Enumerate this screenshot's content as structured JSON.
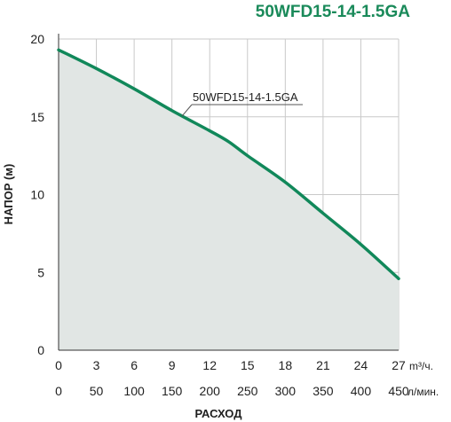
{
  "chart_data": {
    "type": "area",
    "title": "50WFD15-14-1.5GA",
    "ylabel": "НАПОР (м)",
    "xlabel": "РАСХОД",
    "x_unit_top": "m³/ч.",
    "x_unit_bottom": "л/мин.",
    "xlim": [
      0,
      27
    ],
    "ylim": [
      0,
      20
    ],
    "x_ticks": [
      0,
      3,
      6,
      9,
      12,
      15,
      18,
      21,
      24,
      27
    ],
    "x_ticks_lpm": [
      0,
      50,
      100,
      150,
      200,
      250,
      300,
      350,
      400,
      450
    ],
    "y_ticks": [
      0,
      5,
      10,
      15,
      20
    ],
    "grid": true,
    "series": [
      {
        "name": "50WFD15-14-1.5GA",
        "x": [
          0,
          3,
          6,
          9,
          12,
          13.5,
          15,
          18,
          21,
          24,
          27
        ],
        "y": [
          19.3,
          18.1,
          16.8,
          15.4,
          14.1,
          13.4,
          12.5,
          10.8,
          8.8,
          6.8,
          4.6
        ]
      }
    ],
    "colors": {
      "line": "#11885a",
      "fill": "#e1e6e4",
      "grid": "#c9c9c9",
      "title": "#1a8a5a"
    }
  }
}
